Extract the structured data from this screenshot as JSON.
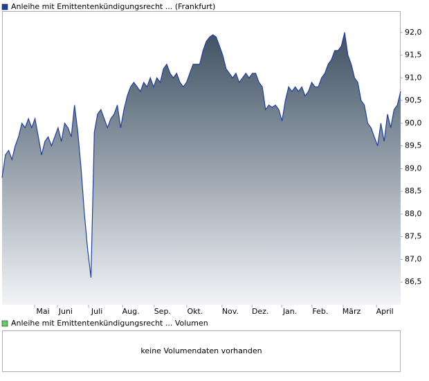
{
  "chart_data": {
    "type": "area",
    "series": [
      {
        "name": "Anleihe mit Emittentenkündigungsrecht ... (Frankfurt)",
        "color": "#1f3f99",
        "values": [
          88.8,
          89.3,
          89.4,
          89.2,
          89.5,
          89.7,
          90.0,
          89.9,
          90.1,
          89.9,
          90.1,
          89.7,
          89.3,
          89.6,
          89.7,
          89.5,
          89.7,
          89.9,
          89.6,
          90.0,
          89.9,
          89.7,
          90.4,
          89.8,
          89.0,
          88.0,
          87.2,
          86.6,
          89.8,
          90.2,
          90.3,
          90.1,
          89.9,
          90.1,
          90.2,
          90.4,
          89.9,
          90.3,
          90.6,
          90.8,
          90.9,
          90.8,
          90.7,
          90.9,
          90.8,
          91.0,
          90.8,
          91.0,
          90.9,
          91.2,
          91.3,
          91.1,
          91.0,
          91.1,
          90.9,
          90.8,
          90.9,
          91.1,
          91.3,
          91.3,
          91.3,
          91.6,
          91.8,
          91.9,
          91.95,
          91.9,
          91.7,
          91.5,
          91.2,
          91.1,
          91.0,
          91.1,
          90.9,
          91.0,
          91.1,
          91.0,
          91.1,
          91.1,
          90.9,
          90.8,
          90.3,
          90.4,
          90.35,
          90.4,
          90.3,
          90.05,
          90.5,
          90.8,
          90.7,
          90.8,
          90.7,
          90.8,
          90.6,
          90.7,
          90.9,
          90.8,
          90.8,
          91.0,
          91.1,
          91.3,
          91.4,
          91.6,
          91.6,
          91.7,
          92.0,
          91.5,
          91.3,
          91.0,
          90.9,
          90.5,
          90.4,
          90.0,
          89.9,
          89.7,
          89.5,
          90.0,
          89.6,
          90.2,
          89.9,
          90.3,
          90.4,
          90.7
        ]
      }
    ],
    "xlim": [
      0,
      121
    ],
    "xticks": [
      {
        "value": 12.4,
        "label": "Mai"
      },
      {
        "value": 19.3,
        "label": "Juni"
      },
      {
        "value": 28.8,
        "label": "Juli"
      },
      {
        "value": 39.1,
        "label": "Aug."
      },
      {
        "value": 48.7,
        "label": "Sep."
      },
      {
        "value": 58.6,
        "label": "Okt."
      },
      {
        "value": 69.3,
        "label": "Nov."
      },
      {
        "value": 78.4,
        "label": "Dez."
      },
      {
        "value": 87.4,
        "label": "Jan."
      },
      {
        "value": 96.6,
        "label": "Feb."
      },
      {
        "value": 106.1,
        "label": "März"
      },
      {
        "value": 116.2,
        "label": "April"
      }
    ],
    "ylim": [
      86.0,
      92.47
    ],
    "yticks": [
      {
        "value": 86.5,
        "label": "86,5"
      },
      {
        "value": 87,
        "label": "87,0"
      },
      {
        "value": 87.5,
        "label": "87,5"
      },
      {
        "value": 88,
        "label": "88,0"
      },
      {
        "value": 88.5,
        "label": "88,5"
      },
      {
        "value": 89,
        "label": "89,0"
      },
      {
        "value": 89.5,
        "label": "89,5"
      },
      {
        "value": 90,
        "label": "90,0"
      },
      {
        "value": 90.5,
        "label": "90,5"
      },
      {
        "value": 91,
        "label": "91,0"
      },
      {
        "value": 91.5,
        "label": "91,5"
      },
      {
        "value": 92,
        "label": "92,0"
      }
    ],
    "grid": false,
    "volume_panel": {
      "name": "Anleihe mit Emittentenkündigungsrecht ... Volumen",
      "color": "#66cc66",
      "message": "keine Volumendaten vorhanden"
    }
  }
}
